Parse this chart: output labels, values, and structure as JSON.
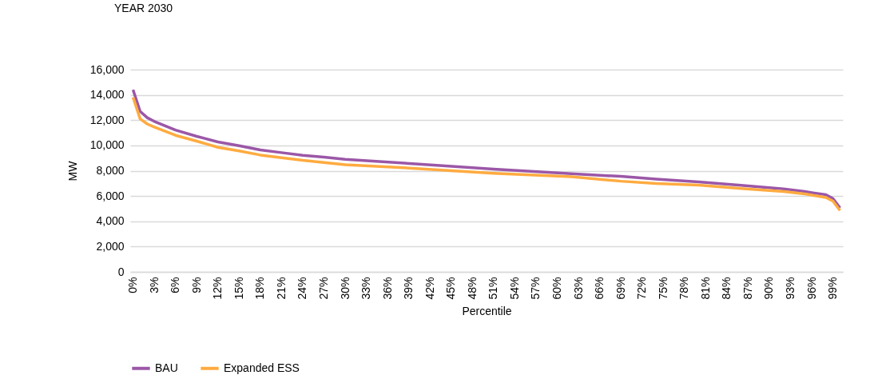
{
  "chart_data": {
    "type": "line",
    "title": "YEAR 2030",
    "xlabel": "Percentile",
    "ylabel": "MW",
    "xlim": [
      -0.4,
      100.4
    ],
    "xticks": [
      {
        "value": 0,
        "label": "0%"
      },
      {
        "value": 3,
        "label": "3%"
      },
      {
        "value": 6,
        "label": "6%"
      },
      {
        "value": 9,
        "label": "9%"
      },
      {
        "value": 12,
        "label": "12%"
      },
      {
        "value": 15,
        "label": "15%"
      },
      {
        "value": 18,
        "label": "18%"
      },
      {
        "value": 21,
        "label": "21%"
      },
      {
        "value": 24,
        "label": "24%"
      },
      {
        "value": 27,
        "label": "27%"
      },
      {
        "value": 30,
        "label": "30%"
      },
      {
        "value": 33,
        "label": "33%"
      },
      {
        "value": 36,
        "label": "36%"
      },
      {
        "value": 39,
        "label": "39%"
      },
      {
        "value": 42,
        "label": "42%"
      },
      {
        "value": 45,
        "label": "45%"
      },
      {
        "value": 48,
        "label": "48%"
      },
      {
        "value": 51,
        "label": "51%"
      },
      {
        "value": 54,
        "label": "54%"
      },
      {
        "value": 57,
        "label": "57%"
      },
      {
        "value": 60,
        "label": "60%"
      },
      {
        "value": 63,
        "label": "63%"
      },
      {
        "value": 66,
        "label": "66%"
      },
      {
        "value": 69,
        "label": "69%"
      },
      {
        "value": 72,
        "label": "72%"
      },
      {
        "value": 75,
        "label": "75%"
      },
      {
        "value": 78,
        "label": "78%"
      },
      {
        "value": 81,
        "label": "81%"
      },
      {
        "value": 84,
        "label": "84%"
      },
      {
        "value": 87,
        "label": "87%"
      },
      {
        "value": 90,
        "label": "90%"
      },
      {
        "value": 93,
        "label": "93%"
      },
      {
        "value": 96,
        "label": "96%"
      },
      {
        "value": 99,
        "label": "99%"
      }
    ],
    "ylim": [
      0,
      16000
    ],
    "yticks": [
      0,
      {
        "value": 2000,
        "label": "2,000"
      },
      {
        "value": 4000,
        "label": "4,000"
      },
      {
        "value": 6000,
        "label": "6,000"
      },
      {
        "value": 8000,
        "label": "8,000"
      },
      {
        "value": 10000,
        "label": "10,000"
      },
      {
        "value": 12000,
        "label": "12,000"
      },
      {
        "value": 14000,
        "label": "14,000"
      },
      {
        "value": 16000,
        "label": "16,000"
      }
    ],
    "x": [
      0,
      1,
      2,
      3,
      6,
      9,
      12,
      15,
      18,
      21,
      24,
      27,
      30,
      40,
      51,
      62,
      69,
      74,
      80,
      86,
      92,
      95,
      98,
      99,
      100
    ],
    "series": [
      {
        "name": "BAU",
        "color": "#9b57a7",
        "values": [
          14400,
          12700,
          12200,
          11900,
          11220,
          10720,
          10280,
          9980,
          9640,
          9430,
          9220,
          9070,
          8900,
          8540,
          8120,
          7770,
          7550,
          7330,
          7110,
          6850,
          6560,
          6350,
          6100,
          5800,
          5060
        ]
      },
      {
        "name": "Expanded ESS",
        "color": "#ffab40",
        "values": [
          13800,
          12100,
          11700,
          11450,
          10800,
          10340,
          9850,
          9560,
          9240,
          9030,
          8820,
          8650,
          8480,
          8180,
          7800,
          7530,
          7170,
          6990,
          6860,
          6600,
          6350,
          6170,
          5880,
          5600,
          4850
        ]
      }
    ],
    "grid": "y",
    "legend": "bottom"
  }
}
